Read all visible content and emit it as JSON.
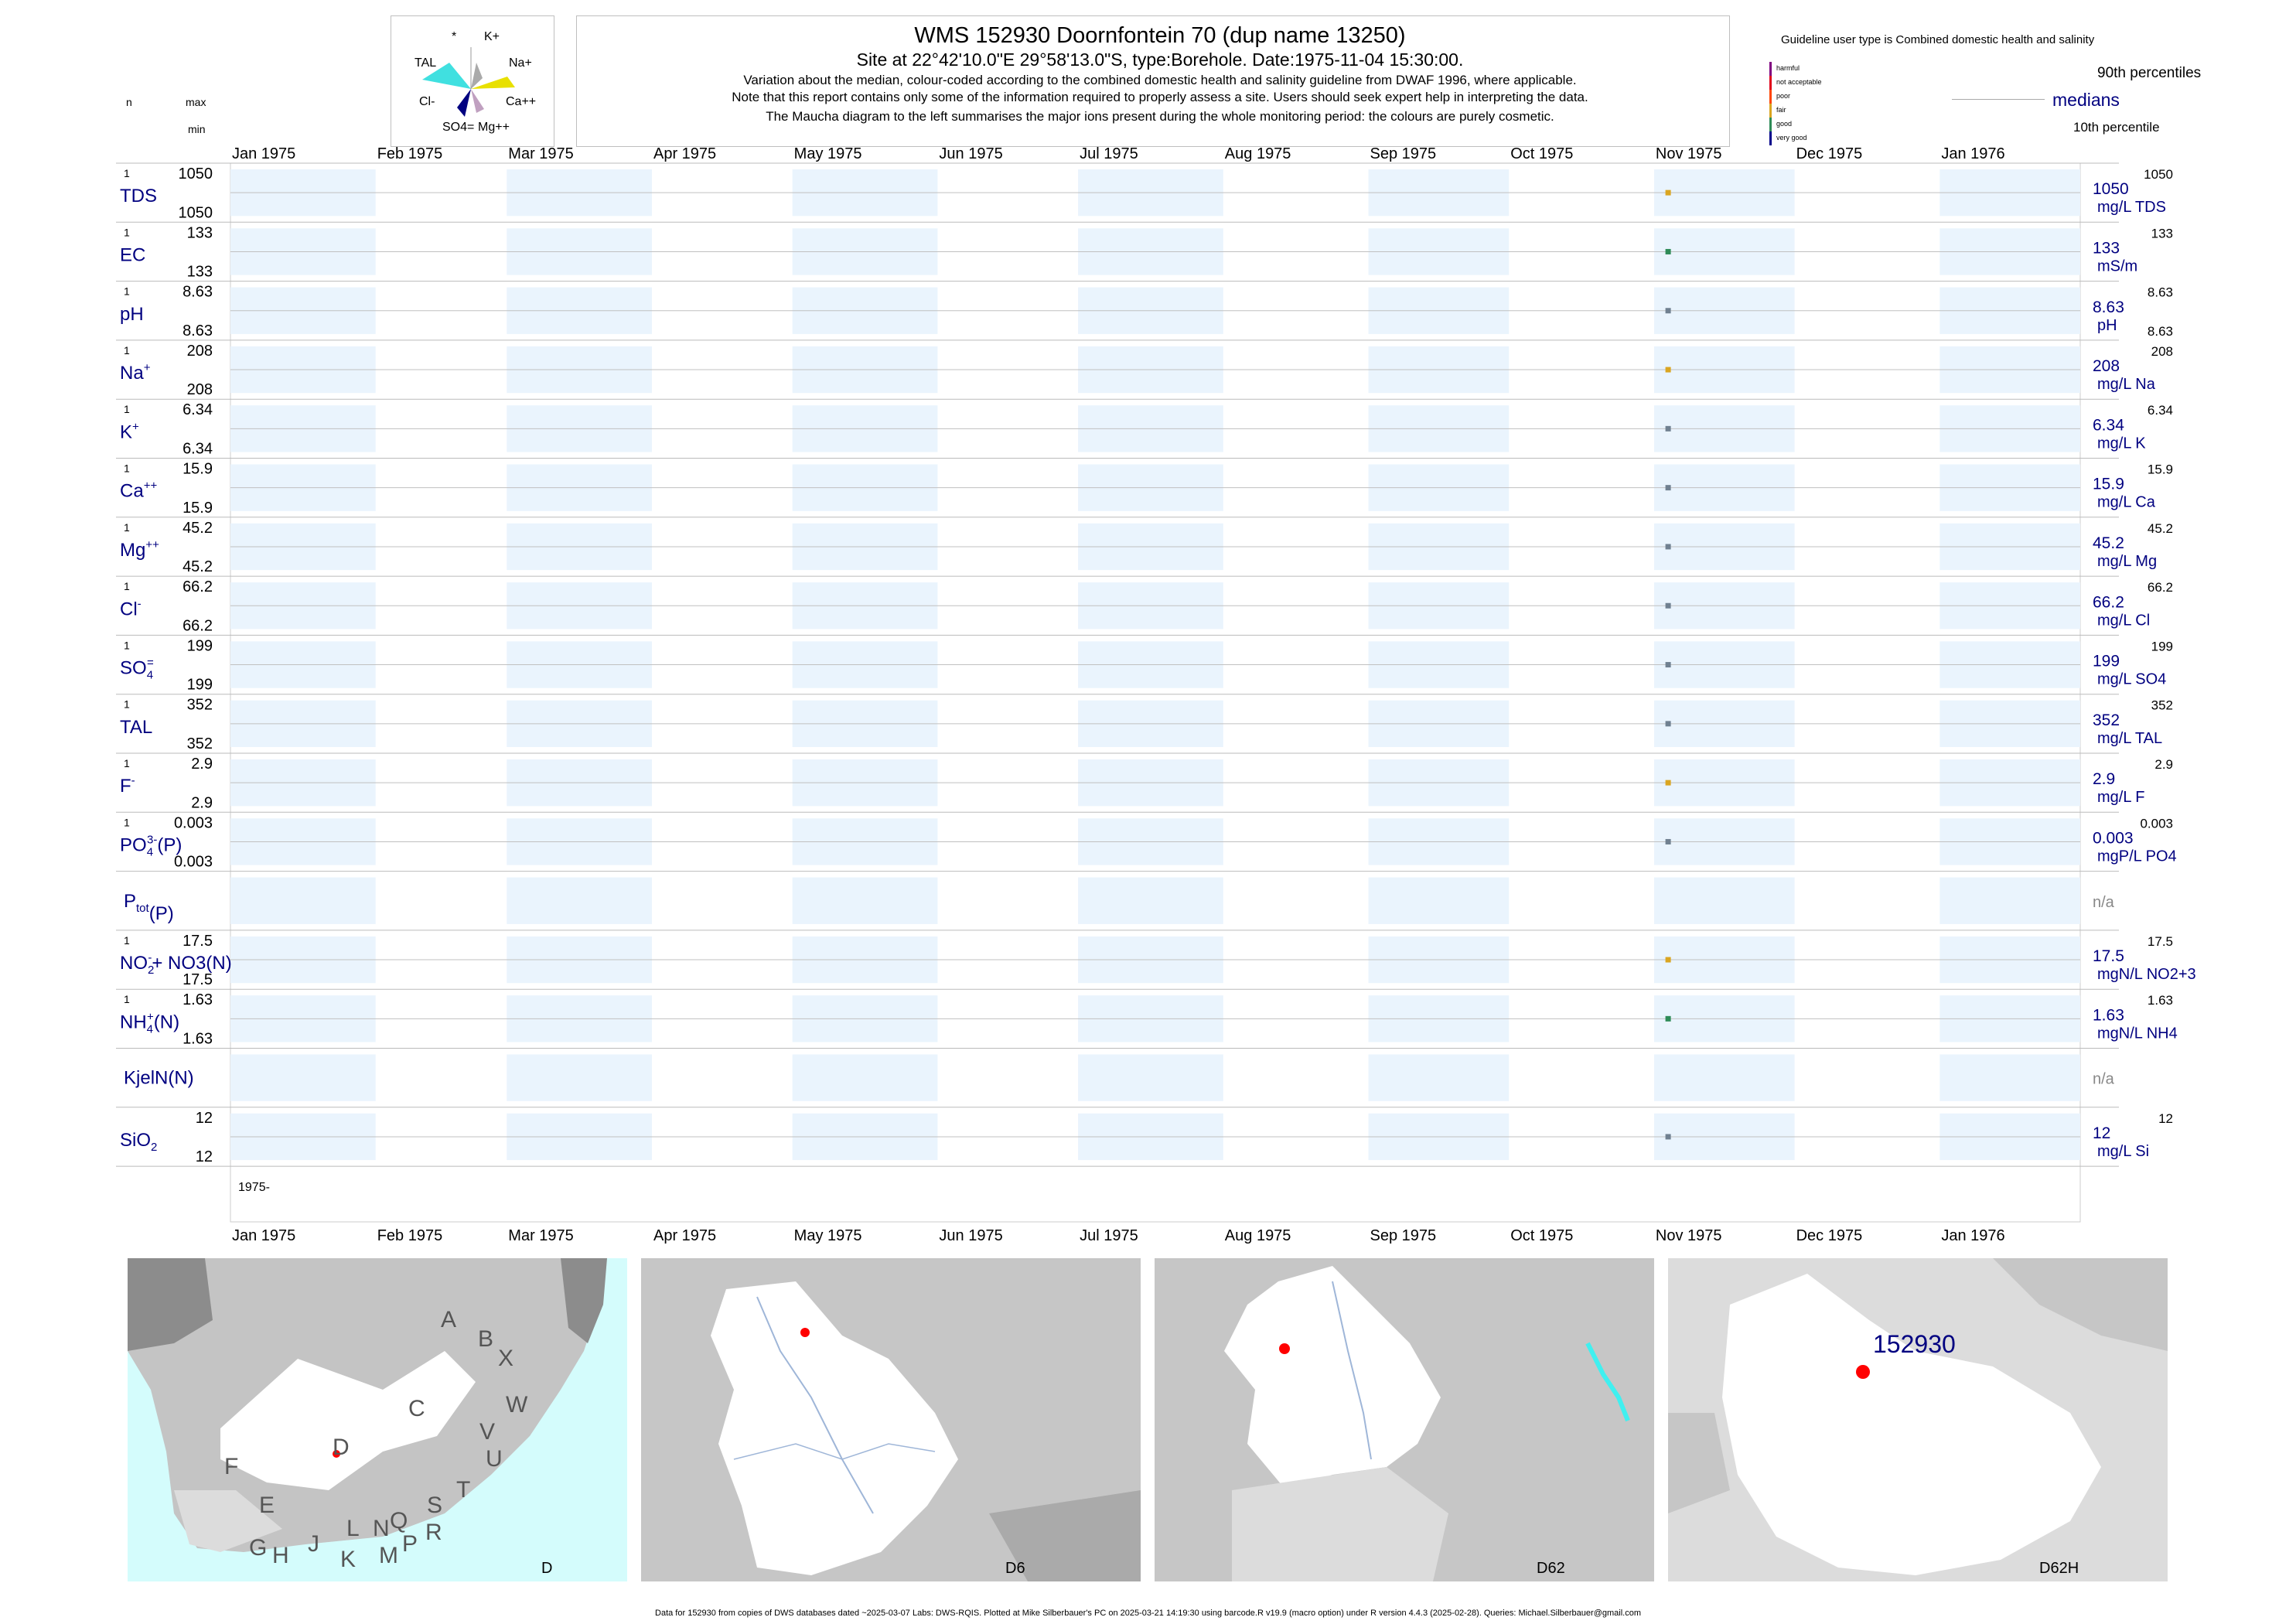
{
  "header": {
    "title": "WMS 152930  Doornfontein 70 (dup name 13250)",
    "subtitle": "Site at 22°42'10.0\"E 29°58'13.0\"S, type:Borehole. Date:1975-11-04 15:30:00.",
    "note1": "Variation about the median,  colour-coded according to the combined domestic health and salinity guideline from DWAF 1996, where applicable.",
    "note2": "Note that this report contains only some of the information required to properly assess a site. Users should seek expert help in interpreting the data.",
    "note3": "The Maucha diagram to the left summarises the major ions present during the whole monitoring period: the colours are purely cosmetic."
  },
  "left_header": {
    "n": "n",
    "max": "max",
    "min": "min"
  },
  "maucha": {
    "labels": [
      "*",
      "K+",
      "TAL",
      "Na+",
      "Cl-",
      "Ca++",
      "SO4=",
      "Mg++"
    ]
  },
  "legend": {
    "guideline": "Guideline user type is Combined domestic health and salinity",
    "levels": [
      {
        "label": "harmful",
        "color": "#800080"
      },
      {
        "label": "not acceptable",
        "color": "#e0001a"
      },
      {
        "label": "poor",
        "color": "#ff4500"
      },
      {
        "label": "fair",
        "color": "#daa520"
      },
      {
        "label": "good",
        "color": "#2e8b57"
      },
      {
        "label": "very good",
        "color": "#00008b"
      }
    ],
    "p90": "90th percentiles",
    "median": "medians",
    "p10": "10th percentile"
  },
  "chart_data": {
    "type": "scatter",
    "months_top": [
      "Jan 1975",
      "Feb 1975",
      "Mar 1975",
      "Apr 1975",
      "May 1975",
      "Jun 1975",
      "Jul 1975",
      "Aug 1975",
      "Sep 1975",
      "Oct 1975",
      "Nov 1975",
      "Dec 1975",
      "Jan 1976"
    ],
    "months_bottom": [
      "Jan 1975",
      "Feb 1975",
      "Mar 1975",
      "Apr 1975",
      "May 1975",
      "Jun 1975",
      "Jul 1975",
      "Aug 1975",
      "Sep 1975",
      "Oct 1975",
      "Nov 1975",
      "Dec 1975",
      "Jan 1976"
    ],
    "year_label": "1975-",
    "sample_date": "1975-11-04",
    "series": [
      {
        "name": "TDS",
        "sup": "",
        "sub": "",
        "n": "1",
        "max": "1050",
        "min": "1050",
        "median": "1050",
        "unit": "mg/L TDS",
        "p90": "1050",
        "p10": "",
        "color": "#daa520",
        "value": 1050
      },
      {
        "name": "EC",
        "sup": "",
        "sub": "",
        "n": "1",
        "max": "133",
        "min": "133",
        "median": "133",
        "unit": "mS/m",
        "p90": "133",
        "p10": "",
        "color": "#2e8b57",
        "value": 133
      },
      {
        "name": "pH",
        "sup": "",
        "sub": "",
        "n": "1",
        "max": "8.63",
        "min": "8.63",
        "median": "8.63",
        "unit": "pH",
        "p90": "8.63",
        "p10": "8.63",
        "color": "#708090",
        "value": 8.63
      },
      {
        "name": "Na",
        "sup": "+",
        "sub": "",
        "n": "1",
        "max": "208",
        "min": "208",
        "median": "208",
        "unit": "mg/L Na",
        "p90": "208",
        "p10": "",
        "color": "#daa520",
        "value": 208
      },
      {
        "name": "K",
        "sup": "+",
        "sub": "",
        "n": "1",
        "max": "6.34",
        "min": "6.34",
        "median": "6.34",
        "unit": "mg/L K",
        "p90": "6.34",
        "p10": "",
        "color": "#708090",
        "value": 6.34
      },
      {
        "name": "Ca",
        "sup": "++",
        "sub": "",
        "n": "1",
        "max": "15.9",
        "min": "15.9",
        "median": "15.9",
        "unit": "mg/L Ca",
        "p90": "15.9",
        "p10": "",
        "color": "#708090",
        "value": 15.9
      },
      {
        "name": "Mg",
        "sup": "++",
        "sub": "",
        "n": "1",
        "max": "45.2",
        "min": "45.2",
        "median": "45.2",
        "unit": "mg/L Mg",
        "p90": "45.2",
        "p10": "",
        "color": "#708090",
        "value": 45.2
      },
      {
        "name": "Cl",
        "sup": "-",
        "sub": "",
        "n": "1",
        "max": "66.2",
        "min": "66.2",
        "median": "66.2",
        "unit": "mg/L Cl",
        "p90": "66.2",
        "p10": "",
        "color": "#708090",
        "value": 66.2
      },
      {
        "name": "SO",
        "sup": "=",
        "sub": "4",
        "n": "1",
        "max": "199",
        "min": "199",
        "median": "199",
        "unit": "mg/L SO4",
        "p90": "199",
        "p10": "",
        "color": "#708090",
        "value": 199
      },
      {
        "name": "TAL",
        "sup": "",
        "sub": "",
        "n": "1",
        "max": "352",
        "min": "352",
        "median": "352",
        "unit": "mg/L TAL",
        "p90": "352",
        "p10": "",
        "color": "#708090",
        "value": 352
      },
      {
        "name": "F",
        "sup": "-",
        "sub": "",
        "n": "1",
        "max": "2.9",
        "min": "2.9",
        "median": "2.9",
        "unit": "mg/L F",
        "p90": "2.9",
        "p10": "",
        "color": "#daa520",
        "value": 2.9
      },
      {
        "name": "PO",
        "sup": "3-",
        "sub": "4",
        "suffix": "(P)",
        "n": "1",
        "max": "0.003",
        "min": "0.003",
        "median": "0.003",
        "unit": "mgP/L PO4",
        "p90": "0.003",
        "p10": "",
        "color": "#708090",
        "value": 0.003
      },
      {
        "name": "P",
        "sup": "",
        "sub": "tot",
        "suffix": "(P)",
        "n": "",
        "max": "",
        "min": "",
        "median": "n/a",
        "unit": "",
        "p90": "",
        "p10": "",
        "color": "",
        "value": null
      },
      {
        "name": "NO",
        "sup": "-",
        "sub": "2",
        "suffix": "+ NO3(N)",
        "n": "1",
        "max": "17.5",
        "min": "17.5",
        "median": "17.5",
        "unit": "mgN/L NO2+3",
        "p90": "17.5",
        "p10": "",
        "color": "#daa520",
        "value": 17.5
      },
      {
        "name": "NH",
        "sup": "+",
        "sub": "4",
        "suffix": "(N)",
        "n": "1",
        "max": "1.63",
        "min": "1.63",
        "median": "1.63",
        "unit": "mgN/L NH4",
        "p90": "1.63",
        "p10": "",
        "color": "#2e8b57",
        "value": 1.63
      },
      {
        "name": "KjelN(N)",
        "sup": "",
        "sub": "",
        "n": "",
        "max": "",
        "min": "",
        "median": "n/a",
        "unit": "",
        "p90": "",
        "p10": "",
        "color": "",
        "value": null
      },
      {
        "name": "SiO",
        "sup": "",
        "sub": "2",
        "n": "",
        "max": "12",
        "min": "12",
        "median": "12",
        "unit": "mg/L Si",
        "p90": "12",
        "p10": "",
        "color": "#708090",
        "value": 12
      }
    ]
  },
  "maps": {
    "panels": [
      {
        "label": "D"
      },
      {
        "label": "D6"
      },
      {
        "label": "D62"
      },
      {
        "label": "D62H"
      }
    ],
    "regions": [
      "A",
      "B",
      "X",
      "W",
      "C",
      "D",
      "V",
      "U",
      "T",
      "F",
      "E",
      "S",
      "G",
      "H",
      "J",
      "L",
      "N",
      "Q",
      "K",
      "M",
      "P",
      "R"
    ],
    "site_label": "152930"
  },
  "footer": "Data for 152930 from copies of DWS databases dated ~2025-03-07 Labs: DWS-RQIS. Plotted at Mike Silberbauer's PC on 2025-03-21 14:19:30 using barcode.R v19.9 (macro option) under R version 4.4.3 (2025-02-28). Queries: Michael.Silberbauer@gmail.com"
}
